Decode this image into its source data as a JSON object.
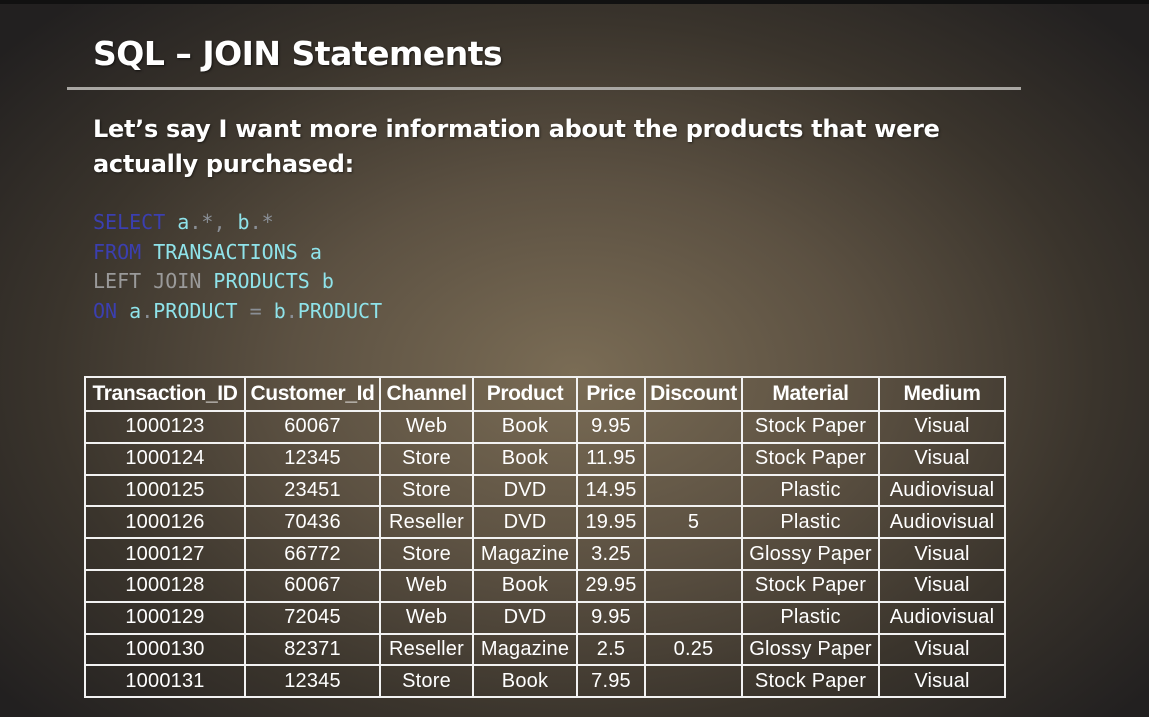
{
  "slide": {
    "title": "SQL – JOIN Statements",
    "intro": "Let’s say I want more information about the products that were actually purchased:"
  },
  "code": {
    "line1": {
      "kw": "SELECT",
      "rest": " a.*, b.*"
    },
    "line2": {
      "kw": "FROM",
      "rest": " TRANSACTIONS a"
    },
    "line3": {
      "kw": "LEFT JOIN",
      "rest": " PRODUCTS b"
    },
    "line4": {
      "kw": "ON",
      "rest": " a.PRODUCT = b.PRODUCT"
    }
  },
  "table": {
    "headers": [
      "Transaction_ID",
      "Customer_Id",
      "Channel",
      "Product",
      "Price",
      "Discount",
      "Material",
      "Medium"
    ],
    "rows": [
      [
        "1000123",
        "60067",
        "Web",
        "Book",
        "9.95",
        "",
        "Stock Paper",
        "Visual"
      ],
      [
        "1000124",
        "12345",
        "Store",
        "Book",
        "11.95",
        "",
        "Stock Paper",
        "Visual"
      ],
      [
        "1000125",
        "23451",
        "Store",
        "DVD",
        "14.95",
        "",
        "Plastic",
        "Audiovisual"
      ],
      [
        "1000126",
        "70436",
        "Reseller",
        "DVD",
        "19.95",
        "5",
        "Plastic",
        "Audiovisual"
      ],
      [
        "1000127",
        "66772",
        "Store",
        "Magazine",
        "3.25",
        "",
        "Glossy Paper",
        "Visual"
      ],
      [
        "1000128",
        "60067",
        "Web",
        "Book",
        "29.95",
        "",
        "Stock Paper",
        "Visual"
      ],
      [
        "1000129",
        "72045",
        "Web",
        "DVD",
        "9.95",
        "",
        "Plastic",
        "Audiovisual"
      ],
      [
        "1000130",
        "82371",
        "Reseller",
        "Magazine",
        "2.5",
        "0.25",
        "Glossy Paper",
        "Visual"
      ],
      [
        "1000131",
        "12345",
        "Store",
        "Book",
        "7.95",
        "",
        "Stock Paper",
        "Visual"
      ]
    ]
  }
}
